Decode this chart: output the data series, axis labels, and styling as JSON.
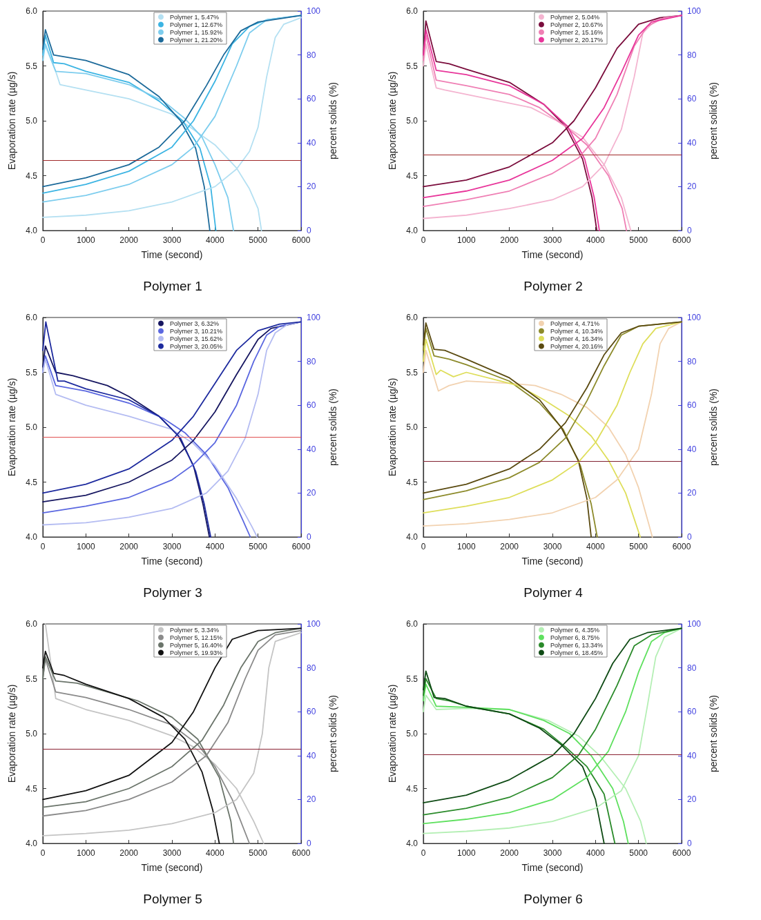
{
  "chart_data": [
    {
      "type": "line",
      "title": "Polymer 1",
      "xlabel": "Time (second)",
      "ylabel": "Evaporation rate (µg/s)",
      "y2label": "percent solids (%)",
      "xlim": [
        0,
        6000
      ],
      "xticks": [
        0,
        1000,
        2000,
        3000,
        4000,
        5000,
        6000
      ],
      "ylim": [
        4,
        6
      ],
      "yticks": [
        {
          "value": 4,
          "label": "4.0"
        },
        {
          "value": 4.5,
          "label": "4.5"
        },
        {
          "value": 5,
          "label": "5.0"
        },
        {
          "value": 5.5,
          "label": "5.5"
        },
        {
          "value": 6,
          "label": "6.0"
        }
      ],
      "y2lim": [
        0,
        100
      ],
      "y2ticks": [
        0,
        20,
        40,
        60,
        80,
        100
      ],
      "legend": "top",
      "marker": "none",
      "line_style": "solid",
      "ref_lines": [
        {
          "axis": "y",
          "value": 4.64,
          "color": "#a02828"
        }
      ],
      "series": [
        {
          "name": "Polymer 1, 5.47%",
          "color": "#b4e0f2",
          "x": [
            0,
            60,
            300,
            400,
            1000,
            2000,
            3000,
            3500,
            4000,
            4500,
            4800,
            5000,
            5080
          ],
          "values": [
            5.6,
            5.68,
            5.45,
            5.33,
            5.28,
            5.2,
            5.06,
            4.92,
            4.78,
            4.57,
            4.38,
            4.2,
            4.0
          ]
        },
        {
          "name": "Polymer 1, 12.67%",
          "color": "#3bb4e3",
          "x": [
            0,
            60,
            250,
            500,
            1000,
            2000,
            2700,
            3250,
            3650,
            3900,
            4020
          ],
          "values": [
            5.6,
            5.78,
            5.53,
            5.52,
            5.45,
            5.35,
            5.18,
            5.0,
            4.75,
            4.4,
            4.0
          ]
        },
        {
          "name": "Polymer 1, 15.92%",
          "color": "#7dcdee",
          "x": [
            0,
            60,
            300,
            1000,
            2000,
            2800,
            3300,
            3700,
            4000,
            4300,
            4430
          ],
          "values": [
            5.55,
            5.7,
            5.45,
            5.43,
            5.33,
            5.18,
            5.02,
            4.85,
            4.6,
            4.3,
            4.0
          ]
        },
        {
          "name": "Polymer 1, 21.20%",
          "color": "#1c6a9a",
          "x": [
            0,
            60,
            250,
            1000,
            2000,
            2700,
            3200,
            3550,
            3750,
            3880
          ],
          "values": [
            5.65,
            5.83,
            5.6,
            5.55,
            5.42,
            5.22,
            5.0,
            4.75,
            4.4,
            4.0
          ]
        },
        {
          "axis": "y2",
          "color": "#b4e0f2",
          "x": [
            0,
            1000,
            2000,
            3000,
            4000,
            4500,
            4800,
            5000,
            5200,
            5400,
            5600,
            6000
          ],
          "values": [
            6,
            7,
            9,
            13,
            20,
            28,
            36,
            47,
            70,
            88,
            94,
            97
          ]
        },
        {
          "axis": "y2",
          "color": "#3bb4e3",
          "x": [
            0,
            1000,
            2000,
            3000,
            3500,
            4000,
            4400,
            4800,
            5200,
            6000
          ],
          "values": [
            17,
            21,
            27,
            38,
            50,
            68,
            85,
            93,
            96,
            98
          ]
        },
        {
          "axis": "y2",
          "color": "#7dcdee",
          "x": [
            0,
            1000,
            2000,
            3000,
            3500,
            4000,
            4500,
            4800,
            5200,
            6000
          ],
          "values": [
            13,
            16,
            21,
            30,
            38,
            52,
            75,
            90,
            96,
            98
          ]
        },
        {
          "axis": "y2",
          "color": "#1c6a9a",
          "x": [
            0,
            1000,
            2000,
            2700,
            3300,
            3800,
            4200,
            4600,
            5000,
            6000
          ],
          "values": [
            20,
            24,
            30,
            38,
            50,
            66,
            80,
            91,
            95,
            98
          ]
        }
      ]
    },
    {
      "type": "line",
      "title": "Polymer 2",
      "xlabel": "Time (second)",
      "ylabel": "Evaporation rate (µg/s)",
      "y2label": "percent solids (%)",
      "xlim": [
        0,
        6000
      ],
      "xticks": [
        0,
        1000,
        2000,
        3000,
        4000,
        5000,
        6000
      ],
      "ylim": [
        4,
        6
      ],
      "yticks": [
        {
          "value": 4,
          "label": "4.0"
        },
        {
          "value": 4.5,
          "label": "4.5"
        },
        {
          "value": 5,
          "label": "5.0"
        },
        {
          "value": 5.5,
          "label": "5.5"
        },
        {
          "value": 6,
          "label": "6.0"
        }
      ],
      "y2lim": [
        0,
        100
      ],
      "y2ticks": [
        0,
        20,
        40,
        60,
        80,
        100
      ],
      "legend": "top",
      "marker": "none",
      "line_style": "solid",
      "ref_lines": [
        {
          "axis": "y",
          "value": 4.69,
          "color": "#a02828"
        }
      ],
      "series": [
        {
          "name": "Polymer 2, 5.04%",
          "color": "#f4b4d0",
          "x": [
            0,
            60,
            300,
            500,
            1500,
            2500,
            3100,
            3700,
            4200,
            4600,
            4820
          ],
          "values": [
            5.5,
            5.7,
            5.3,
            5.28,
            5.2,
            5.12,
            5.0,
            4.85,
            4.6,
            4.3,
            4.0
          ]
        },
        {
          "name": "Polymer 2, 10.67%",
          "color": "#7a0c3c",
          "x": [
            0,
            60,
            300,
            600,
            1000,
            2000,
            2800,
            3300,
            3700,
            3920,
            4030
          ],
          "values": [
            5.6,
            5.91,
            5.54,
            5.52,
            5.47,
            5.35,
            5.15,
            4.95,
            4.65,
            4.3,
            4.0
          ]
        },
        {
          "name": "Polymer 2, 15.16%",
          "color": "#ef7fb4",
          "x": [
            0,
            60,
            300,
            1000,
            2000,
            2700,
            3300,
            3800,
            4300,
            4620,
            4720
          ],
          "values": [
            5.55,
            5.78,
            5.37,
            5.32,
            5.24,
            5.12,
            4.95,
            4.78,
            4.5,
            4.2,
            4.0
          ]
        },
        {
          "name": "Polymer 2, 20.17%",
          "color": "#e8359a",
          "x": [
            0,
            60,
            300,
            1000,
            2000,
            2800,
            3350,
            3750,
            3970,
            4090
          ],
          "values": [
            5.6,
            5.83,
            5.46,
            5.42,
            5.32,
            5.15,
            4.95,
            4.65,
            4.3,
            4.0
          ]
        },
        {
          "axis": "y2",
          "color": "#f4b4d0",
          "x": [
            0,
            1000,
            2000,
            3000,
            3700,
            4200,
            4600,
            4900,
            5100,
            5400,
            6000
          ],
          "values": [
            5.5,
            7,
            10,
            14,
            20,
            30,
            46,
            70,
            90,
            96,
            98
          ]
        },
        {
          "axis": "y2",
          "color": "#7a0c3c",
          "x": [
            0,
            1000,
            2000,
            3000,
            3500,
            4000,
            4500,
            5000,
            5500,
            6000
          ],
          "values": [
            20,
            23,
            29,
            40,
            50,
            65,
            83,
            94,
            97,
            98
          ]
        },
        {
          "axis": "y2",
          "color": "#ef7fb4",
          "x": [
            0,
            1000,
            2000,
            3000,
            3600,
            4000,
            4500,
            4900,
            5200,
            5600,
            6000
          ],
          "values": [
            11,
            14,
            18,
            26,
            33,
            42,
            62,
            84,
            93,
            97,
            98
          ]
        },
        {
          "axis": "y2",
          "color": "#e8359a",
          "x": [
            0,
            1000,
            2000,
            3000,
            3700,
            4200,
            4600,
            5000,
            5300,
            6000
          ],
          "values": [
            15,
            18,
            23,
            32,
            42,
            56,
            72,
            89,
            95,
            98
          ]
        }
      ]
    },
    {
      "type": "line",
      "title": "Polymer 3",
      "xlabel": "Time (second)",
      "ylabel": "Evaporation rate (µg/s)",
      "y2label": "percent solids (%)",
      "xlim": [
        0,
        6000
      ],
      "xticks": [
        0,
        1000,
        2000,
        3000,
        4000,
        5000,
        6000
      ],
      "ylim": [
        4,
        6
      ],
      "yticks": [
        {
          "value": 4,
          "label": "4.0"
        },
        {
          "value": 4.5,
          "label": "4.5"
        },
        {
          "value": 5,
          "label": "5.0"
        },
        {
          "value": 5.5,
          "label": "5.5"
        },
        {
          "value": 6,
          "label": "6.0"
        }
      ],
      "y2lim": [
        0,
        100
      ],
      "y2ticks": [
        0,
        20,
        40,
        60,
        80,
        100
      ],
      "legend": "top",
      "marker": "none",
      "line_style": "solid",
      "ref_lines": [
        {
          "axis": "y",
          "value": 4.91,
          "color": "#e05050"
        }
      ],
      "series": [
        {
          "name": "Polymer 3, 6.32%",
          "color": "#161660",
          "x": [
            0,
            60,
            300,
            700,
            1500,
            2000,
            2700,
            3150,
            3500,
            3720,
            3870
          ],
          "values": [
            5.55,
            5.74,
            5.5,
            5.47,
            5.38,
            5.28,
            5.1,
            4.92,
            4.65,
            4.3,
            4.0
          ]
        },
        {
          "name": "Polymer 3, 10.21%",
          "color": "#5a67e0",
          "x": [
            0,
            60,
            300,
            1000,
            2000,
            2800,
            3300,
            3800,
            4300,
            4650,
            4820
          ],
          "values": [
            5.5,
            5.65,
            5.38,
            5.33,
            5.22,
            5.08,
            4.95,
            4.75,
            4.45,
            4.15,
            4.0
          ]
        },
        {
          "name": "Polymer 3, 15.62%",
          "color": "#b4bcf2",
          "x": [
            0,
            60,
            300,
            1000,
            2000,
            3000,
            3500,
            4000,
            4500,
            4850,
            4980
          ],
          "values": [
            5.5,
            5.62,
            5.3,
            5.2,
            5.1,
            4.98,
            4.85,
            4.65,
            4.35,
            4.1,
            4.0
          ]
        },
        {
          "name": "Polymer 3, 20.05%",
          "color": "#1d2a9e",
          "x": [
            0,
            70,
            350,
            500,
            1000,
            2000,
            2700,
            3200,
            3550,
            3750,
            3900
          ],
          "values": [
            5.7,
            5.96,
            5.42,
            5.42,
            5.35,
            5.25,
            5.1,
            4.9,
            4.6,
            4.3,
            4.0
          ]
        },
        {
          "axis": "y2",
          "color": "#161660",
          "x": [
            0,
            1000,
            2000,
            3000,
            3500,
            4000,
            4500,
            5000,
            5300,
            6000
          ],
          "values": [
            16,
            19,
            25,
            35,
            44,
            57,
            74,
            90,
            95,
            98
          ]
        },
        {
          "axis": "y2",
          "color": "#5a67e0",
          "x": [
            0,
            1000,
            2000,
            3000,
            3500,
            4000,
            4500,
            4900,
            5200,
            5500,
            6000
          ],
          "values": [
            11,
            14,
            18,
            26,
            33,
            43,
            60,
            80,
            92,
            96,
            98
          ]
        },
        {
          "axis": "y2",
          "color": "#b4bcf2",
          "x": [
            0,
            1000,
            2000,
            3000,
            3800,
            4300,
            4700,
            5000,
            5200,
            5400,
            5700,
            6000
          ],
          "values": [
            5.5,
            6.5,
            9,
            13,
            20,
            30,
            45,
            65,
            85,
            93,
            97,
            98
          ]
        },
        {
          "axis": "y2",
          "color": "#1d2a9e",
          "x": [
            0,
            1000,
            2000,
            3000,
            3500,
            4000,
            4500,
            5000,
            5500,
            6000
          ],
          "values": [
            20,
            24,
            31,
            44,
            55,
            70,
            85,
            94,
            97,
            98
          ]
        }
      ]
    },
    {
      "type": "line",
      "title": "Polymer 4",
      "xlabel": "Time (second)",
      "ylabel": "Evaporation rate (µg/s)",
      "y2label": "percent solids (%)",
      "xlim": [
        0,
        6000
      ],
      "xticks": [
        0,
        1000,
        2000,
        3000,
        4000,
        5000,
        6000
      ],
      "ylim": [
        4,
        6
      ],
      "yticks": [
        {
          "value": 4,
          "label": "4.0"
        },
        {
          "value": 4.5,
          "label": "4.5"
        },
        {
          "value": 5,
          "label": "5.0"
        },
        {
          "value": 5.5,
          "label": "5.5"
        },
        {
          "value": 6,
          "label": "6.0"
        }
      ],
      "y2lim": [
        0,
        100
      ],
      "y2ticks": [
        0,
        20,
        40,
        60,
        80,
        100
      ],
      "legend": "top",
      "marker": "none",
      "line_style": "solid",
      "ref_lines": [
        {
          "axis": "y",
          "value": 4.69,
          "color": "#802030"
        }
      ],
      "series": [
        {
          "name": "Polymer 4, 4.71%",
          "color": "#f2d2b0",
          "x": [
            0,
            60,
            350,
            600,
            1000,
            2000,
            2600,
            3200,
            3800,
            4300,
            4700,
            5000,
            5250,
            5320
          ],
          "values": [
            5.5,
            5.7,
            5.33,
            5.38,
            5.42,
            5.4,
            5.38,
            5.3,
            5.18,
            5.0,
            4.75,
            4.45,
            4.1,
            4.0
          ]
        },
        {
          "name": "Polymer 4, 10.34%",
          "color": "#8c8a2a",
          "x": [
            0,
            60,
            250,
            600,
            1000,
            2000,
            2700,
            3250,
            3650,
            3900,
            4040
          ],
          "values": [
            5.7,
            5.9,
            5.65,
            5.62,
            5.57,
            5.42,
            5.22,
            4.98,
            4.65,
            4.3,
            4.0
          ]
        },
        {
          "name": "Polymer 4, 16.34%",
          "color": "#dede5a",
          "x": [
            0,
            60,
            300,
            400,
            700,
            1000,
            1500,
            2200,
            2800,
            3400,
            3900,
            4300,
            4700,
            5040
          ],
          "values": [
            5.6,
            5.8,
            5.48,
            5.52,
            5.46,
            5.5,
            5.45,
            5.38,
            5.25,
            5.1,
            4.92,
            4.7,
            4.4,
            4.0
          ]
        },
        {
          "name": "Polymer 4, 20.16%",
          "color": "#5a4a10",
          "x": [
            0,
            60,
            250,
            500,
            1000,
            2000,
            2700,
            3200,
            3600,
            3800,
            3900
          ],
          "values": [
            5.75,
            5.95,
            5.71,
            5.7,
            5.62,
            5.45,
            5.25,
            5.0,
            4.7,
            4.35,
            4.0
          ]
        },
        {
          "axis": "y2",
          "color": "#f2d2b0",
          "x": [
            0,
            1000,
            2000,
            3000,
            4000,
            4500,
            5000,
            5300,
            5500,
            5700,
            6000
          ],
          "values": [
            5,
            6,
            8,
            11,
            18,
            26,
            40,
            65,
            88,
            95,
            98
          ]
        },
        {
          "axis": "y2",
          "color": "#8c8a2a",
          "x": [
            0,
            1000,
            2000,
            2700,
            3300,
            3800,
            4200,
            4600,
            5000,
            6000
          ],
          "values": [
            17,
            21,
            27,
            34,
            45,
            62,
            78,
            92,
            96,
            98
          ]
        },
        {
          "axis": "y2",
          "color": "#dede5a",
          "x": [
            0,
            1000,
            2000,
            3000,
            3600,
            4000,
            4500,
            4800,
            5100,
            5400,
            6000
          ],
          "values": [
            11,
            14,
            18,
            26,
            34,
            43,
            60,
            75,
            88,
            95,
            98
          ]
        },
        {
          "axis": "y2",
          "color": "#5a4a10",
          "x": [
            0,
            1000,
            2000,
            2700,
            3300,
            3800,
            4200,
            4600,
            5000,
            6000
          ],
          "values": [
            20,
            24,
            31,
            40,
            52,
            68,
            83,
            93,
            96,
            98
          ]
        }
      ]
    },
    {
      "type": "line",
      "title": "Polymer 5",
      "xlabel": "Time (second)",
      "ylabel": "Evaporation rate (µg/s)",
      "y2label": "percent solids (%)",
      "xlim": [
        0,
        6000
      ],
      "xticks": [
        0,
        1000,
        2000,
        3000,
        4000,
        5000,
        6000
      ],
      "ylim": [
        4,
        6
      ],
      "yticks": [
        {
          "value": 4,
          "label": "4.0"
        },
        {
          "value": 4.5,
          "label": "4.5"
        },
        {
          "value": 5,
          "label": "5.0"
        },
        {
          "value": 5.5,
          "label": "5.5"
        },
        {
          "value": 6,
          "label": "6.0"
        }
      ],
      "y2lim": [
        0,
        100
      ],
      "y2ticks": [
        0,
        20,
        40,
        60,
        80,
        100
      ],
      "legend": "top",
      "marker": "none",
      "line_style": "solid",
      "ref_lines": [
        {
          "axis": "y",
          "value": 4.86,
          "color": "#8a2030"
        }
      ],
      "series": [
        {
          "name": "Polymer 5, 3.34%",
          "color": "#c4c4c4",
          "x": [
            60,
            300,
            1000,
            2000,
            3000,
            3500,
            4000,
            4500,
            4900,
            5130
          ],
          "values": [
            6.0,
            5.32,
            5.22,
            5.12,
            4.98,
            4.88,
            4.72,
            4.5,
            4.2,
            4.0
          ]
        },
        {
          "name": "Polymer 5, 12.15%",
          "color": "#8a8a8a",
          "x": [
            0,
            60,
            300,
            1000,
            2000,
            3000,
            3600,
            4000,
            4400,
            4800
          ],
          "values": [
            5.5,
            5.68,
            5.38,
            5.33,
            5.22,
            5.08,
            4.9,
            4.7,
            4.4,
            4.0
          ]
        },
        {
          "name": "Polymer 5, 16.40%",
          "color": "#6a746a",
          "x": [
            0,
            60,
            300,
            800,
            1500,
            2200,
            3000,
            3600,
            4100,
            4370,
            4430
          ],
          "values": [
            5.5,
            5.7,
            5.48,
            5.46,
            5.38,
            5.3,
            5.15,
            4.95,
            4.6,
            4.2,
            4.0
          ]
        },
        {
          "name": "Polymer 5, 19.93%",
          "color": "#111111",
          "x": [
            0,
            60,
            250,
            500,
            1000,
            2000,
            2800,
            3300,
            3700,
            3950,
            4100
          ],
          "values": [
            5.6,
            5.75,
            5.55,
            5.53,
            5.45,
            5.32,
            5.15,
            4.95,
            4.65,
            4.3,
            4.0
          ]
        },
        {
          "axis": "y2",
          "color": "#c4c4c4",
          "x": [
            0,
            1000,
            2000,
            3000,
            4000,
            4500,
            4900,
            5100,
            5250,
            5400,
            6000
          ],
          "values": [
            3.5,
            4.5,
            6,
            9,
            14,
            20,
            32,
            50,
            80,
            92,
            96
          ]
        },
        {
          "axis": "y2",
          "color": "#8a8a8a",
          "x": [
            0,
            1000,
            2000,
            3000,
            3800,
            4300,
            4700,
            5000,
            5400,
            6000
          ],
          "values": [
            12.5,
            15,
            20,
            28,
            40,
            55,
            75,
            88,
            95,
            97
          ]
        },
        {
          "axis": "y2",
          "color": "#6a746a",
          "x": [
            0,
            1000,
            2000,
            3000,
            3700,
            4200,
            4600,
            5000,
            5400,
            6000
          ],
          "values": [
            16.5,
            19,
            25,
            35,
            47,
            63,
            80,
            92,
            96,
            98
          ]
        },
        {
          "axis": "y2",
          "color": "#111111",
          "x": [
            0,
            1000,
            2000,
            3000,
            3500,
            4000,
            4400,
            5000,
            6000
          ],
          "values": [
            20,
            24,
            31,
            46,
            60,
            80,
            93,
            97,
            98
          ]
        }
      ]
    },
    {
      "type": "line",
      "title": "Polymer 6",
      "xlabel": "Time (second)",
      "ylabel": "Evaporation rate (µg/s)",
      "y2label": "percent solids (%)",
      "xlim": [
        0,
        6000
      ],
      "xticks": [
        0,
        1000,
        2000,
        3000,
        4000,
        5000,
        6000
      ],
      "ylim": [
        4,
        6
      ],
      "yticks": [
        {
          "value": 4,
          "label": "4.0"
        },
        {
          "value": 4.5,
          "label": "4.5"
        },
        {
          "value": 5,
          "label": "5.0"
        },
        {
          "value": 5.5,
          "label": "5.5"
        },
        {
          "value": 6,
          "label": "6.0"
        }
      ],
      "y2lim": [
        0,
        100
      ],
      "y2ticks": [
        0,
        20,
        40,
        60,
        80,
        100
      ],
      "legend": "top",
      "marker": "none",
      "line_style": "solid",
      "ref_lines": [
        {
          "axis": "y",
          "value": 4.81,
          "color": "#8a2030"
        }
      ],
      "series": [
        {
          "name": "Polymer 6, 4.35%",
          "color": "#b4efb4",
          "x": [
            0,
            60,
            300,
            1000,
            2000,
            2900,
            3600,
            4100,
            4700,
            5050,
            5180
          ],
          "values": [
            5.2,
            5.35,
            5.22,
            5.23,
            5.22,
            5.12,
            4.98,
            4.8,
            4.5,
            4.2,
            4.0
          ]
        },
        {
          "name": "Polymer 6, 8.75%",
          "color": "#5ee05e",
          "x": [
            0,
            60,
            300,
            1000,
            2000,
            2800,
            3400,
            3900,
            4400,
            4650,
            4760
          ],
          "values": [
            5.3,
            5.45,
            5.25,
            5.24,
            5.22,
            5.12,
            5.0,
            4.8,
            4.5,
            4.2,
            4.0
          ]
        },
        {
          "name": "Polymer 6, 13.34%",
          "color": "#2a8a2a",
          "x": [
            0,
            60,
            300,
            600,
            1000,
            2000,
            2800,
            3300,
            3800,
            4200,
            4450
          ],
          "values": [
            5.35,
            5.5,
            5.32,
            5.3,
            5.25,
            5.18,
            5.04,
            4.88,
            4.7,
            4.45,
            4.0
          ]
        },
        {
          "name": "Polymer 6, 18.45%",
          "color": "#0e4a14",
          "x": [
            0,
            60,
            250,
            500,
            1000,
            2000,
            2700,
            3200,
            3700,
            4000,
            4200
          ],
          "values": [
            5.4,
            5.57,
            5.33,
            5.32,
            5.25,
            5.18,
            5.05,
            4.9,
            4.7,
            4.4,
            4.0
          ]
        },
        {
          "axis": "y2",
          "color": "#b4efb4",
          "x": [
            0,
            1000,
            2000,
            3000,
            4000,
            4600,
            5000,
            5200,
            5400,
            5600,
            6000
          ],
          "values": [
            4.5,
            5.5,
            7,
            10,
            16,
            24,
            40,
            62,
            85,
            94,
            98
          ]
        },
        {
          "axis": "y2",
          "color": "#5ee05e",
          "x": [
            0,
            1000,
            2000,
            3000,
            3800,
            4300,
            4700,
            5000,
            5300,
            5600,
            6000
          ],
          "values": [
            9,
            11,
            14,
            20,
            30,
            42,
            60,
            78,
            92,
            96,
            98
          ]
        },
        {
          "axis": "y2",
          "color": "#2a8a2a",
          "x": [
            0,
            1000,
            2000,
            3000,
            3600,
            4000,
            4500,
            4900,
            5300,
            6000
          ],
          "values": [
            13,
            16,
            21,
            30,
            40,
            52,
            72,
            90,
            95,
            98
          ]
        },
        {
          "axis": "y2",
          "color": "#0e4a14",
          "x": [
            0,
            1000,
            2000,
            3000,
            3500,
            4000,
            4400,
            4800,
            5200,
            6000
          ],
          "values": [
            18.5,
            22,
            29,
            40,
            50,
            66,
            82,
            93,
            96,
            98
          ]
        }
      ]
    }
  ]
}
